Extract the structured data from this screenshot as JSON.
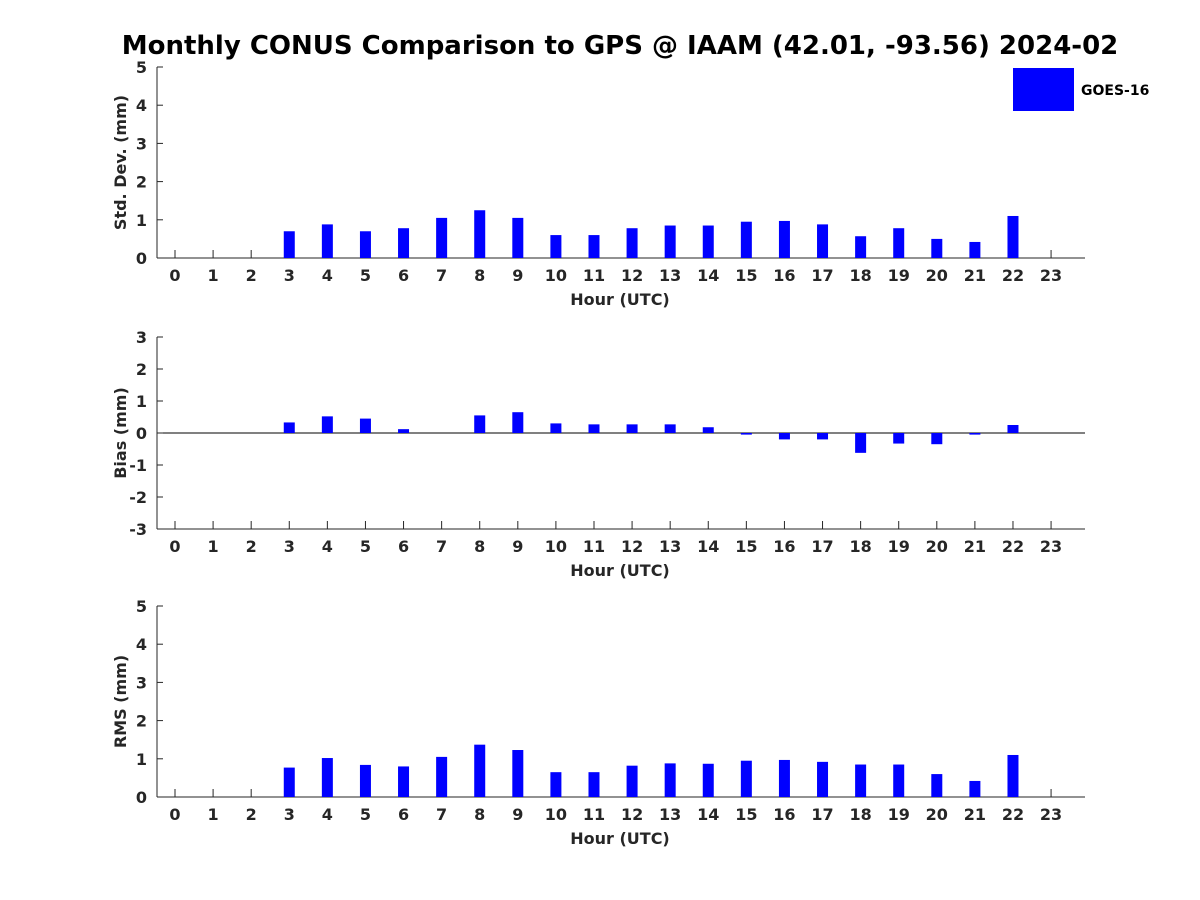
{
  "chart_data": {
    "type": "bar",
    "title": "Monthly CONUS Comparison to GPS @ IAAM (42.01, -93.56) 2024-02",
    "legend": {
      "label": "GOES-16",
      "color": "#0000ff",
      "placement": "top-right"
    },
    "bar_color": "#0000ff",
    "categories": [
      "0",
      "1",
      "2",
      "3",
      "4",
      "5",
      "6",
      "7",
      "8",
      "9",
      "10",
      "11",
      "12",
      "13",
      "14",
      "15",
      "16",
      "17",
      "18",
      "19",
      "20",
      "21",
      "22",
      "23"
    ],
    "panels": [
      {
        "name": "std-dev",
        "xlabel": "Hour (UTC)",
        "ylabel": "Std. Dev. (mm)",
        "ylim": [
          0,
          5
        ],
        "yticks": [
          "0",
          "1",
          "2",
          "3",
          "4",
          "5"
        ],
        "values": [
          null,
          null,
          null,
          0.7,
          0.88,
          0.7,
          0.78,
          1.05,
          1.25,
          1.05,
          0.6,
          0.6,
          0.78,
          0.85,
          0.85,
          0.95,
          0.97,
          0.88,
          0.57,
          0.78,
          0.5,
          0.42,
          1.1,
          null
        ]
      },
      {
        "name": "bias",
        "xlabel": "Hour (UTC)",
        "ylabel": "Bias (mm)",
        "ylim": [
          -3,
          3
        ],
        "yticks": [
          "-3",
          "-2",
          "-1",
          "0",
          "1",
          "2",
          "3"
        ],
        "values": [
          null,
          null,
          null,
          0.33,
          0.52,
          0.45,
          0.12,
          null,
          0.55,
          0.65,
          0.3,
          0.27,
          0.27,
          0.27,
          0.18,
          -0.05,
          -0.2,
          -0.2,
          -0.62,
          -0.33,
          -0.35,
          -0.05,
          0.25,
          null
        ]
      },
      {
        "name": "rms",
        "xlabel": "Hour (UTC)",
        "ylabel": "RMS (mm)",
        "ylim": [
          0,
          5
        ],
        "yticks": [
          "0",
          "1",
          "2",
          "3",
          "4",
          "5"
        ],
        "values": [
          null,
          null,
          null,
          0.77,
          1.02,
          0.84,
          0.8,
          1.05,
          1.37,
          1.23,
          0.65,
          0.65,
          0.82,
          0.88,
          0.87,
          0.95,
          0.97,
          0.92,
          0.85,
          0.85,
          0.6,
          0.42,
          1.1,
          null
        ]
      }
    ]
  }
}
